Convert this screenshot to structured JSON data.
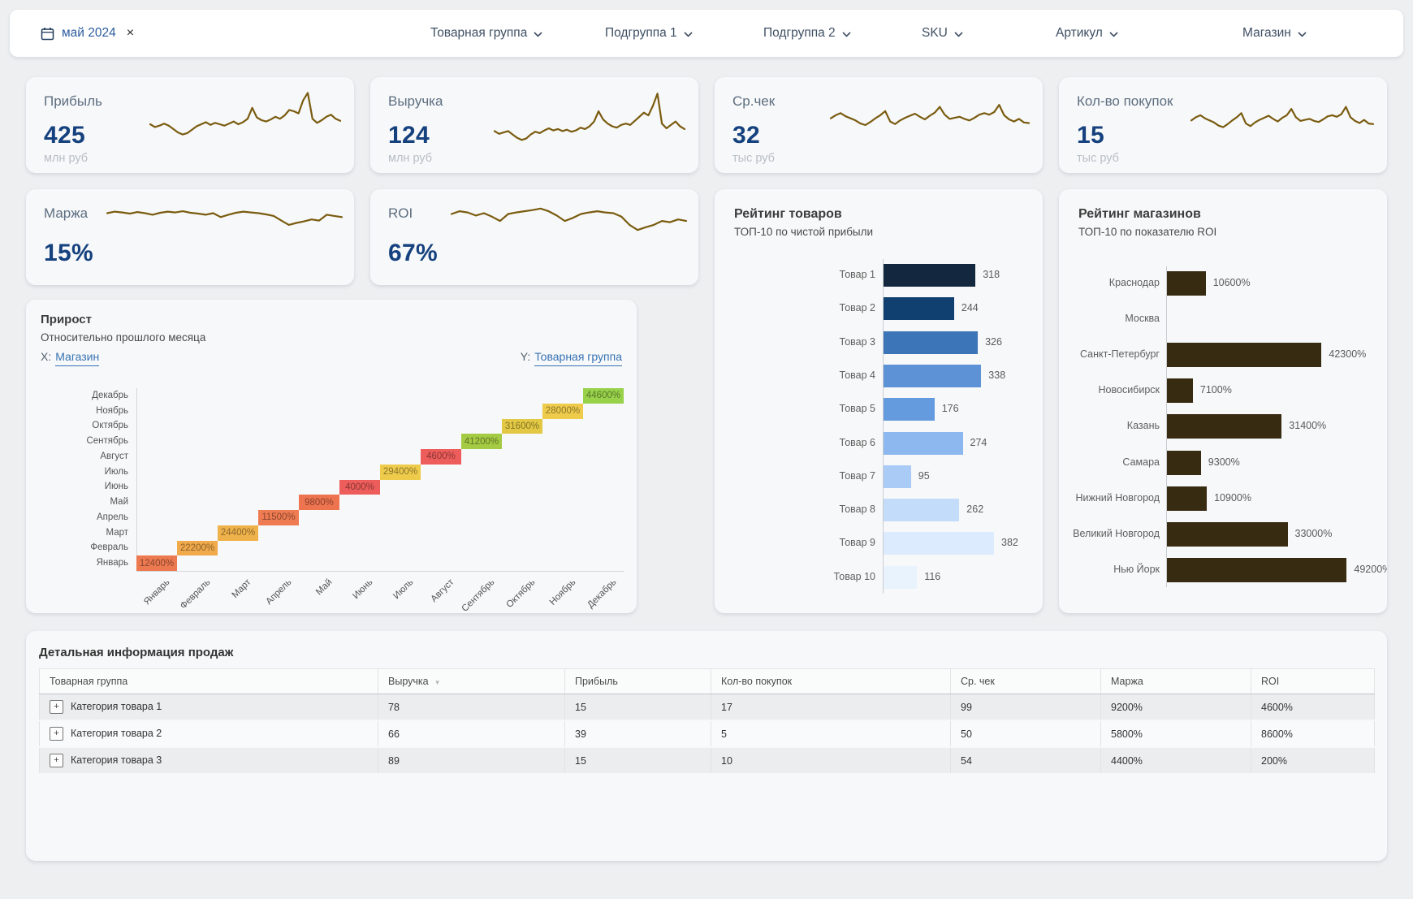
{
  "filters": {
    "date_chip": {
      "label": "май 2024",
      "close_icon": "×"
    },
    "items": [
      "Товарная группа",
      "Подгруппа 1",
      "Подгруппа 2",
      "SKU",
      "Артикул",
      "Магазин"
    ]
  },
  "kpi_cards": [
    {
      "title": "Прибыль",
      "value": "425",
      "unit": "млн руб",
      "spark": [
        50,
        46,
        48,
        51,
        48,
        43,
        38,
        35,
        37,
        42,
        47,
        50,
        53,
        49,
        52,
        50,
        48,
        51,
        54,
        50,
        53,
        58,
        74,
        60,
        56,
        54,
        57,
        61,
        58,
        63,
        71,
        69,
        66,
        85,
        96,
        58,
        52,
        56,
        61,
        64,
        58,
        55
      ]
    },
    {
      "title": "Выручка",
      "value": "124",
      "unit": "млн руб",
      "spark": [
        40,
        36,
        38,
        40,
        35,
        30,
        27,
        29,
        35,
        39,
        37,
        41,
        44,
        41,
        43,
        40,
        42,
        39,
        41,
        45,
        43,
        47,
        54,
        69,
        57,
        51,
        47,
        45,
        49,
        51,
        49,
        55,
        61,
        67,
        63,
        77,
        95,
        51,
        44,
        49,
        54,
        47,
        43
      ]
    },
    {
      "title": "Ср.чек",
      "value": "32",
      "unit": "тыс руб",
      "spark": [
        52,
        58,
        62,
        56,
        52,
        48,
        42,
        39,
        45,
        52,
        58,
        66,
        46,
        41,
        48,
        53,
        57,
        61,
        55,
        50,
        57,
        63,
        74,
        59,
        51,
        53,
        55,
        51,
        48,
        53,
        59,
        62,
        59,
        64,
        78,
        58,
        50,
        46,
        51,
        44,
        43
      ]
    },
    {
      "title": "Кол-во покупок",
      "value": "15",
      "unit": "тыс руб",
      "spark": [
        48,
        54,
        58,
        52,
        48,
        44,
        38,
        35,
        41,
        48,
        54,
        62,
        42,
        37,
        44,
        49,
        53,
        57,
        51,
        46,
        53,
        58,
        70,
        54,
        47,
        49,
        51,
        47,
        45,
        50,
        56,
        58,
        55,
        60,
        74,
        54,
        47,
        43,
        49,
        42,
        41
      ]
    },
    {
      "title": "Маржа",
      "value": "15%",
      "unit": "",
      "spark": [
        76,
        80,
        78,
        75,
        79,
        76,
        72,
        77,
        80,
        78,
        81,
        77,
        75,
        72,
        76,
        66,
        72,
        77,
        80,
        78,
        76,
        73,
        69,
        57,
        46,
        51,
        55,
        60,
        57,
        72,
        69,
        66
      ]
    },
    {
      "title": "ROI",
      "value": "67%",
      "unit": "",
      "spark": [
        74,
        81,
        78,
        70,
        76,
        67,
        56,
        74,
        78,
        81,
        84,
        88,
        81,
        70,
        56,
        64,
        74,
        78,
        81,
        78,
        76,
        67,
        46,
        33,
        40,
        46,
        56,
        53,
        60,
        56
      ]
    }
  ],
  "growth": {
    "x_prefix": "X:",
    "y_prefix": "Y:"
  },
  "colors": {
    "spark_line": "#7a5c10",
    "kpi_value": "#15417e",
    "link_blue": "#3672b4",
    "store_bar": "#372b11"
  },
  "chart_data": [
    {
      "id": "products_rating",
      "type": "bar",
      "orientation": "horizontal",
      "title": "Рейтинг товаров",
      "subtitle": "ТОП-10 по чистой прибыли",
      "categories": [
        "Товар 1",
        "Товар 2",
        "Товар 3",
        "Товар 4",
        "Товар 5",
        "Товар 6",
        "Товар 7",
        "Товар 8",
        "Товар 9",
        "Товар 10"
      ],
      "values": [
        318,
        244,
        326,
        338,
        176,
        274,
        95,
        262,
        382,
        116
      ],
      "bar_colors": [
        "#13273f",
        "#10406f",
        "#3c76b9",
        "#5e92d6",
        "#649ade",
        "#8db7ef",
        "#a9cbf6",
        "#c3dcfa",
        "#dcebfd",
        "#e9f3fe"
      ]
    },
    {
      "id": "stores_rating",
      "type": "bar",
      "orientation": "horizontal",
      "title": "Рейтинг магазинов",
      "subtitle": "ТОП-10 по показателю ROI",
      "categories": [
        "Краснодар",
        "Москва",
        "Санкт-Петербург",
        "Новосибирск",
        "Казань",
        "Самара",
        "Нижний Новгород",
        "Великий Новгород",
        "Нью Йорк"
      ],
      "values": [
        10600,
        0,
        42300,
        7100,
        31400,
        9300,
        10900,
        33000,
        49200
      ],
      "value_labels": [
        "10600%",
        "",
        "42300%",
        "7100%",
        "31400%",
        "9300%",
        "10900%",
        "33000%",
        "49200%"
      ],
      "bar_color": "#372b11"
    },
    {
      "id": "growth_heatmap",
      "type": "heatmap",
      "title": "Прирост",
      "subtitle": "Относительно прошлого месяца",
      "x_axis_selector": "Магазин",
      "y_axis_selector": "Товарная группа",
      "x_categories": [
        "Январь",
        "Февраль",
        "Март",
        "Апрель",
        "Май",
        "Июнь",
        "Июль",
        "Август",
        "Сентябрь",
        "Октябрь",
        "Ноябрь",
        "Декабрь"
      ],
      "y_categories": [
        "Декабрь",
        "Ноябрь",
        "Октябрь",
        "Сентябрь",
        "Август",
        "Июль",
        "Июнь",
        "Май",
        "Апрель",
        "Март",
        "Февраль",
        "Январь"
      ],
      "cells": [
        {
          "x": "Январь",
          "y": "Январь",
          "label": "12400%",
          "color": "#ed7950"
        },
        {
          "x": "Февраль",
          "y": "Февраль",
          "label": "22200%",
          "color": "#f0a94b"
        },
        {
          "x": "Март",
          "y": "Март",
          "label": "24400%",
          "color": "#efb14a"
        },
        {
          "x": "Апрель",
          "y": "Апрель",
          "label": "11500%",
          "color": "#ee7b51"
        },
        {
          "x": "Май",
          "y": "Май",
          "label": "9800%",
          "color": "#ee7450"
        },
        {
          "x": "Июнь",
          "y": "Июнь",
          "label": "4000%",
          "color": "#ed5d5b"
        },
        {
          "x": "Июль",
          "y": "Июль",
          "label": "29400%",
          "color": "#eecb4b"
        },
        {
          "x": "Август",
          "y": "Август",
          "label": "4600%",
          "color": "#ed5d5b"
        },
        {
          "x": "Сентябрь",
          "y": "Сентябрь",
          "label": "41200%",
          "color": "#a5ca43"
        },
        {
          "x": "Октябрь",
          "y": "Октябрь",
          "label": "31600%",
          "color": "#e3c844"
        },
        {
          "x": "Ноябрь",
          "y": "Ноябрь",
          "label": "28000%",
          "color": "#eecb4b"
        },
        {
          "x": "Декабрь",
          "y": "Декабрь",
          "label": "44600%",
          "color": "#98d14a"
        }
      ]
    },
    {
      "id": "sales_table",
      "type": "table",
      "title": "Детальная информация продаж",
      "columns": [
        "Товарная группа",
        "Выручка",
        "Прибыль",
        "Кол-во покупок",
        "Ср. чек",
        "Маржа",
        "ROI"
      ],
      "sorted_column": "Выручка",
      "expand_icon": "+",
      "rows": [
        [
          "Категория товара 1",
          "78",
          "15",
          "17",
          "99",
          "9200%",
          "4600%"
        ],
        [
          "Категория товара 2",
          "66",
          "39",
          "5",
          "50",
          "5800%",
          "8600%"
        ],
        [
          "Категория товара 3",
          "89",
          "15",
          "10",
          "54",
          "4400%",
          "200%"
        ]
      ]
    }
  ]
}
